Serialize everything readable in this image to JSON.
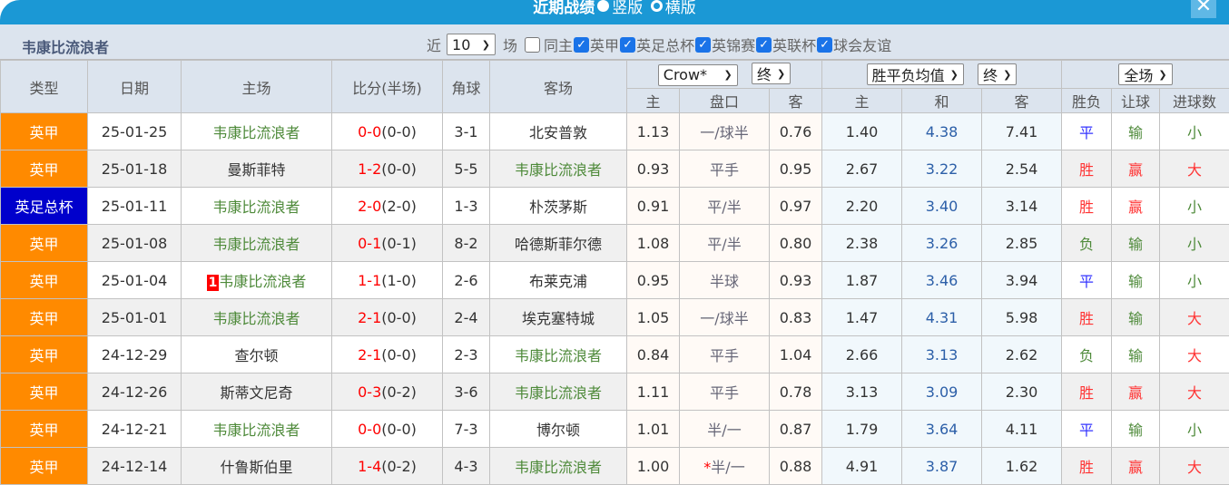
{
  "title": "近期战绩",
  "view_vertical": "竖版",
  "view_horizontal": "横版",
  "team": "韦康比流浪者",
  "filter": {
    "near": "近",
    "count": "10",
    "games": "场",
    "same_home": "同主",
    "leagues": [
      {
        "label": "英甲",
        "checked": true
      },
      {
        "label": "英足总杯",
        "checked": true
      },
      {
        "label": "英锦赛",
        "checked": true
      },
      {
        "label": "英联杯",
        "checked": true
      },
      {
        "label": "球会友谊",
        "checked": true
      }
    ]
  },
  "headers": {
    "type": "类型",
    "date": "日期",
    "home": "主场",
    "score": "比分(半场)",
    "corner": "角球",
    "away": "客场",
    "company": "Crow*",
    "final1": "终",
    "odds_type": "胜平负均值",
    "final2": "终",
    "period": "全场",
    "h_home": "主",
    "h_line": "盘口",
    "h_away": "客",
    "o_home": "主",
    "o_draw": "和",
    "o_away": "客",
    "wl": "胜负",
    "ah": "让球",
    "ou": "进球数"
  },
  "colors": {
    "league": "#ff8a00",
    "cup": "#0000cc",
    "title": "#1b98d5"
  },
  "rows": [
    {
      "type": "英甲",
      "cup": false,
      "date": "25-01-25",
      "home": "韦康比流浪者",
      "rank": "",
      "ft": "0-0",
      "ht": "(0-0)",
      "corner": "3-1",
      "away": "北安普敦",
      "hh": "1.13",
      "line": "一/球半",
      "ha": "0.76",
      "oh": "1.40",
      "od": "4.38",
      "oa": "7.41",
      "wl": "平",
      "ah": "输",
      "ou": "小"
    },
    {
      "type": "英甲",
      "cup": false,
      "date": "25-01-18",
      "home": "曼斯菲特",
      "rank": "",
      "ft": "1-2",
      "ht": "(0-0)",
      "corner": "5-5",
      "away": "韦康比流浪者",
      "hh": "0.93",
      "line": "平手",
      "ha": "0.95",
      "oh": "2.67",
      "od": "3.22",
      "oa": "2.54",
      "wl": "胜",
      "ah": "赢",
      "ou": "大"
    },
    {
      "type": "英足总杯",
      "cup": true,
      "date": "25-01-11",
      "home": "韦康比流浪者",
      "rank": "",
      "ft": "2-0",
      "ht": "(2-0)",
      "corner": "1-3",
      "away": "朴茨茅斯",
      "hh": "0.91",
      "line": "平/半",
      "ha": "0.97",
      "oh": "2.20",
      "od": "3.40",
      "oa": "3.14",
      "wl": "胜",
      "ah": "赢",
      "ou": "小"
    },
    {
      "type": "英甲",
      "cup": false,
      "date": "25-01-08",
      "home": "韦康比流浪者",
      "rank": "",
      "ft": "0-1",
      "ht": "(0-1)",
      "corner": "8-2",
      "away": "哈德斯菲尔德",
      "hh": "1.08",
      "line": "平/半",
      "ha": "0.80",
      "oh": "2.38",
      "od": "3.26",
      "oa": "2.85",
      "wl": "负",
      "ah": "输",
      "ou": "小"
    },
    {
      "type": "英甲",
      "cup": false,
      "date": "25-01-04",
      "home": "韦康比流浪者",
      "rank": "1",
      "ft": "1-1",
      "ht": "(1-0)",
      "corner": "2-6",
      "away": "布莱克浦",
      "hh": "0.95",
      "line": "半球",
      "ha": "0.93",
      "oh": "1.87",
      "od": "3.46",
      "oa": "3.94",
      "wl": "平",
      "ah": "输",
      "ou": "小"
    },
    {
      "type": "英甲",
      "cup": false,
      "date": "25-01-01",
      "home": "韦康比流浪者",
      "rank": "",
      "ft": "2-1",
      "ht": "(0-0)",
      "corner": "2-4",
      "away": "埃克塞特城",
      "hh": "1.05",
      "line": "一/球半",
      "ha": "0.83",
      "oh": "1.47",
      "od": "4.31",
      "oa": "5.98",
      "wl": "胜",
      "ah": "输",
      "ou": "大"
    },
    {
      "type": "英甲",
      "cup": false,
      "date": "24-12-29",
      "home": "查尔顿",
      "rank": "",
      "ft": "2-1",
      "ht": "(0-0)",
      "corner": "2-3",
      "away": "韦康比流浪者",
      "hh": "0.84",
      "line": "平手",
      "ha": "1.04",
      "oh": "2.66",
      "od": "3.13",
      "oa": "2.62",
      "wl": "负",
      "ah": "输",
      "ou": "大"
    },
    {
      "type": "英甲",
      "cup": false,
      "date": "24-12-26",
      "home": "斯蒂文尼奇",
      "rank": "",
      "ft": "0-3",
      "ht": "(0-2)",
      "corner": "3-6",
      "away": "韦康比流浪者",
      "hh": "1.11",
      "line": "平手",
      "ha": "0.78",
      "oh": "3.13",
      "od": "3.09",
      "oa": "2.30",
      "wl": "胜",
      "ah": "赢",
      "ou": "大"
    },
    {
      "type": "英甲",
      "cup": false,
      "date": "24-12-21",
      "home": "韦康比流浪者",
      "rank": "",
      "ft": "0-0",
      "ht": "(0-0)",
      "corner": "7-3",
      "away": "博尔顿",
      "hh": "1.01",
      "line": "半/一",
      "ha": "0.87",
      "oh": "1.79",
      "od": "3.64",
      "oa": "4.11",
      "wl": "平",
      "ah": "输",
      "ou": "小"
    },
    {
      "type": "英甲",
      "cup": false,
      "date": "24-12-14",
      "home": "什鲁斯伯里",
      "rank": "",
      "ft": "1-4",
      "ht": "(0-2)",
      "corner": "4-3",
      "away": "韦康比流浪者",
      "hh": "1.00",
      "line": "*半/一",
      "ha": "0.88",
      "oh": "4.91",
      "od": "3.87",
      "oa": "1.62",
      "wl": "胜",
      "ah": "赢",
      "ou": "大"
    }
  ]
}
